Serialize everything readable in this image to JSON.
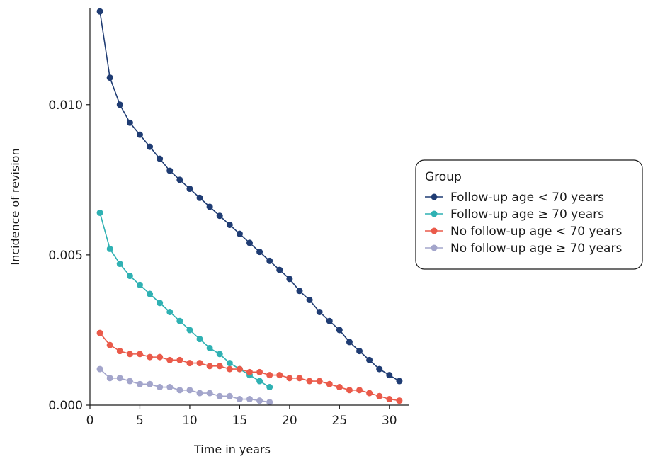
{
  "chart_data": {
    "type": "line",
    "title": "",
    "xlabel": "Time in years",
    "ylabel": "Incidence of revision",
    "xlim": [
      0,
      32
    ],
    "ylim": [
      0,
      0.0132
    ],
    "x_ticks": [
      0,
      5,
      10,
      15,
      20,
      25,
      30
    ],
    "x_tick_labels": [
      "0",
      "5",
      "10",
      "15",
      "20",
      "25",
      "30"
    ],
    "y_ticks": [
      0,
      0.005,
      0.01
    ],
    "y_tick_labels": [
      "0.000",
      "0.005",
      "0.010"
    ],
    "grid": false,
    "legend": {
      "title": "Group",
      "placement": "right"
    },
    "series": [
      {
        "name": "Follow-up age < 70 years",
        "color": "#1f3c73",
        "x": [
          1,
          2,
          3,
          4,
          5,
          6,
          7,
          8,
          9,
          10,
          11,
          12,
          13,
          14,
          15,
          16,
          17,
          18,
          19,
          20,
          21,
          22,
          23,
          24,
          25,
          26,
          27,
          28,
          29,
          30,
          31
        ],
        "y": [
          0.0131,
          0.0109,
          0.01,
          0.0094,
          0.009,
          0.0086,
          0.0082,
          0.0078,
          0.0075,
          0.0072,
          0.0069,
          0.0066,
          0.0063,
          0.006,
          0.0057,
          0.0054,
          0.0051,
          0.0048,
          0.0045,
          0.0042,
          0.0038,
          0.0035,
          0.0031,
          0.0028,
          0.0025,
          0.0021,
          0.0018,
          0.0015,
          0.0012,
          0.001,
          0.0008
        ]
      },
      {
        "name": "Follow-up age ≥ 70 years",
        "color": "#2fb1b3",
        "x": [
          1,
          2,
          3,
          4,
          5,
          6,
          7,
          8,
          9,
          10,
          11,
          12,
          13,
          14,
          15,
          16,
          17,
          18
        ],
        "y": [
          0.0064,
          0.0052,
          0.0047,
          0.0043,
          0.004,
          0.0037,
          0.0034,
          0.0031,
          0.0028,
          0.0025,
          0.0022,
          0.0019,
          0.0017,
          0.0014,
          0.0012,
          0.001,
          0.0008,
          0.0006
        ]
      },
      {
        "name": "No follow-up age < 70 years",
        "color": "#ea5a4a",
        "x": [
          1,
          2,
          3,
          4,
          5,
          6,
          7,
          8,
          9,
          10,
          11,
          12,
          13,
          14,
          15,
          16,
          17,
          18,
          19,
          20,
          21,
          22,
          23,
          24,
          25,
          26,
          27,
          28,
          29,
          30,
          31
        ],
        "y": [
          0.0024,
          0.002,
          0.0018,
          0.0017,
          0.0017,
          0.0016,
          0.0016,
          0.0015,
          0.0015,
          0.0014,
          0.0014,
          0.0013,
          0.0013,
          0.0012,
          0.0012,
          0.0011,
          0.0011,
          0.001,
          0.001,
          0.0009,
          0.0009,
          0.0008,
          0.0008,
          0.0007,
          0.0006,
          0.0005,
          0.0005,
          0.0004,
          0.0003,
          0.0002,
          0.00015
        ]
      },
      {
        "name": "No follow-up age ≥ 70 years",
        "color": "#a3a5cb",
        "x": [
          1,
          2,
          3,
          4,
          5,
          6,
          7,
          8,
          9,
          10,
          11,
          12,
          13,
          14,
          15,
          16,
          17,
          18
        ],
        "y": [
          0.0012,
          0.0009,
          0.0009,
          0.0008,
          0.0007,
          0.0007,
          0.0006,
          0.0006,
          0.0005,
          0.0005,
          0.0004,
          0.0004,
          0.0003,
          0.0003,
          0.0002,
          0.0002,
          0.00015,
          0.0001
        ]
      }
    ]
  }
}
